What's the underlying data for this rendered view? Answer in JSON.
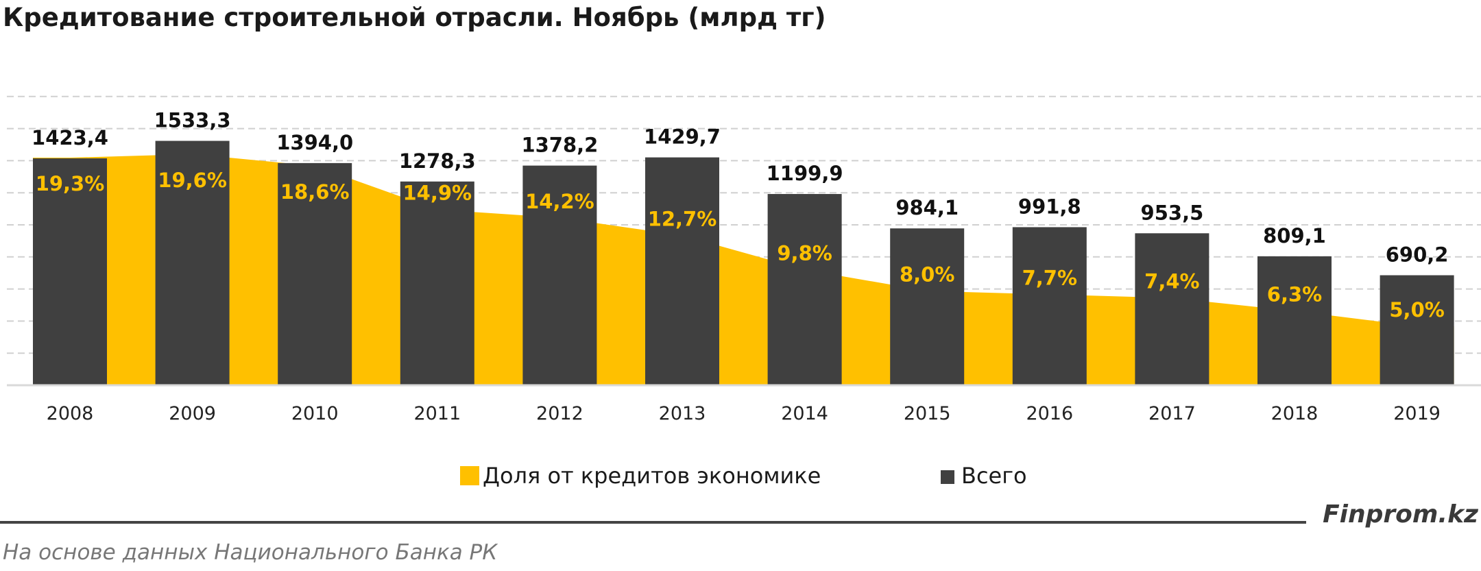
{
  "title": "Кредитование строительной отрасли. Ноябрь (млрд тг)",
  "brand": "Finprom.kz",
  "source": "На основе данных  Национального  Банка РК",
  "colors": {
    "bars": "#404040",
    "area": "#ffc000",
    "grid": "#d0d0d0"
  },
  "chart_data": {
    "type": "bar",
    "categories": [
      "2008",
      "2009",
      "2010",
      "2011",
      "2012",
      "2013",
      "2014",
      "2015",
      "2016",
      "2017",
      "2018",
      "2019"
    ],
    "series": [
      {
        "name": "Всего",
        "type": "bar",
        "values": [
          1423.4,
          1533.3,
          1394.0,
          1278.3,
          1378.2,
          1429.7,
          1199.9,
          984.1,
          991.8,
          953.5,
          809.1,
          690.2
        ],
        "labels": [
          "1423,4",
          "1533,3",
          "1394,0",
          "1278,3",
          "1378,2",
          "1429,7",
          "1199,9",
          "984,1",
          "991,8",
          "953,5",
          "809,1",
          "690,2"
        ]
      },
      {
        "name": "Доля от кредитов экономике",
        "type": "area",
        "values": [
          19.3,
          19.6,
          18.6,
          14.9,
          14.2,
          12.7,
          9.8,
          8.0,
          7.7,
          7.4,
          6.3,
          5.0
        ],
        "labels": [
          "19,3%",
          "19,6%",
          "18,6%",
          "14,9%",
          "14,2%",
          "12,7%",
          "9,8%",
          "8,0%",
          "7,7%",
          "7,4%",
          "6,3%",
          "5,0%"
        ]
      }
    ],
    "legend": [
      "Доля от кредитов экономике",
      "Всего"
    ],
    "legend_position": "bottom",
    "grid": true
  }
}
